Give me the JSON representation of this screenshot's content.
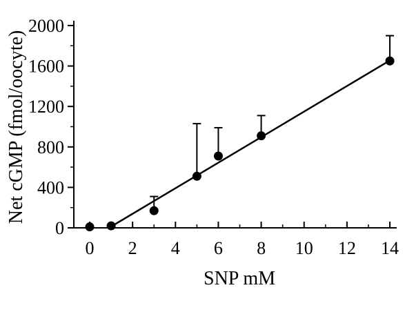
{
  "chart_data": {
    "type": "scatter",
    "title": "",
    "xlabel": "SNP mM",
    "ylabel": "Net cGMP (fmol/oocyte)",
    "x": [
      0,
      1,
      3,
      5,
      6,
      8,
      14
    ],
    "y": [
      10,
      20,
      170,
      510,
      710,
      910,
      1650
    ],
    "y_err_upper": [
      0,
      0,
      140,
      520,
      280,
      200,
      250
    ],
    "fit_line": {
      "x": [
        0.9,
        14
      ],
      "y": [
        0,
        1655
      ]
    },
    "xlim": [
      0,
      14
    ],
    "ylim": [
      0,
      2000
    ],
    "xticks": [
      0,
      2,
      4,
      6,
      8,
      10,
      12,
      14
    ],
    "x_minor_ticks": [
      1,
      3,
      5,
      7,
      9,
      11,
      13
    ],
    "yticks": [
      0,
      400,
      800,
      1200,
      1600,
      2000
    ],
    "y_minor_ticks": [
      200,
      600,
      1000,
      1400,
      1800
    ],
    "marker_color": "#000000",
    "line_color": "#000000",
    "axis_color": "#000000",
    "grid": false,
    "legend": "none"
  }
}
